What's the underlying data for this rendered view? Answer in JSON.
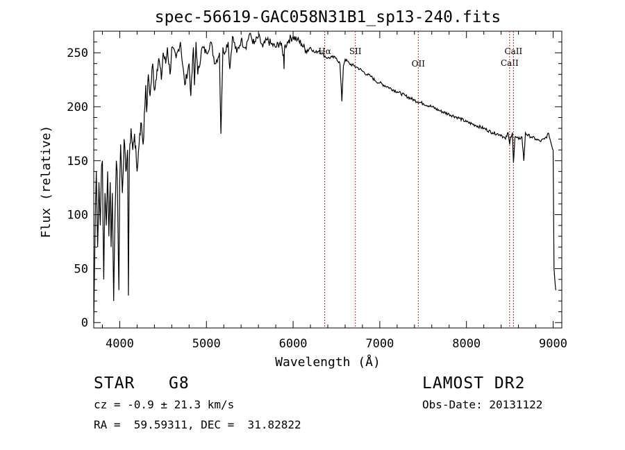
{
  "chart_data": {
    "type": "line",
    "title": "spec-56619-GAC058N31B1_sp13-240.fits",
    "xlabel": "Wavelength (Å)",
    "ylabel": "Flux (relative)",
    "xlim": [
      3700,
      9100
    ],
    "ylim": [
      -5,
      270
    ],
    "xticks": [
      4000,
      5000,
      6000,
      7000,
      8000,
      9000
    ],
    "yticks": [
      0,
      50,
      100,
      150,
      200,
      250
    ],
    "grid": false,
    "series": [
      {
        "name": "spectrum",
        "x": [
          3700,
          3720,
          3730,
          3745,
          3760,
          3775,
          3790,
          3800,
          3815,
          3830,
          3845,
          3860,
          3875,
          3890,
          3900,
          3915,
          3930,
          3945,
          3960,
          3970,
          3990,
          4000,
          4010,
          4030,
          4050,
          4070,
          4090,
          4100,
          4110,
          4130,
          4150,
          4170,
          4200,
          4230,
          4250,
          4270,
          4290,
          4300,
          4310,
          4330,
          4350,
          4380,
          4400,
          4430,
          4450,
          4480,
          4500,
          4530,
          4550,
          4580,
          4600,
          4650,
          4700,
          4750,
          4800,
          4820,
          4850,
          4862,
          4880,
          4900,
          4950,
          5000,
          5050,
          5100,
          5150,
          5167,
          5172,
          5184,
          5190,
          5200,
          5250,
          5270,
          5300,
          5350,
          5400,
          5450,
          5500,
          5550,
          5600,
          5650,
          5700,
          5750,
          5800,
          5850,
          5890,
          5895,
          5900,
          5950,
          6000,
          6050,
          6100,
          6150,
          6200,
          6250,
          6300,
          6350,
          6400,
          6450,
          6500,
          6540,
          6563,
          6580,
          6600,
          6650,
          6700,
          6750,
          6800,
          6850,
          6900,
          6950,
          7000,
          7100,
          7200,
          7300,
          7400,
          7500,
          7600,
          7700,
          7800,
          7900,
          8000,
          8100,
          8200,
          8300,
          8400,
          8450,
          8480,
          8498,
          8510,
          8530,
          8542,
          8560,
          8600,
          8640,
          8662,
          8680,
          8700,
          8750,
          8800,
          8850,
          8900,
          8950,
          8980,
          9000,
          9010,
          9030
        ],
        "values": [
          0,
          110,
          140,
          70,
          130,
          90,
          145,
          150,
          40,
          120,
          90,
          140,
          80,
          130,
          70,
          120,
          20,
          100,
          150,
          140,
          30,
          130,
          165,
          120,
          170,
          140,
          160,
          25,
          150,
          180,
          160,
          175,
          140,
          175,
          185,
          165,
          200,
          220,
          195,
          230,
          210,
          240,
          215,
          235,
          245,
          225,
          250,
          240,
          255,
          230,
          255,
          245,
          260,
          220,
          240,
          210,
          255,
          220,
          260,
          230,
          255,
          250,
          260,
          240,
          250,
          175,
          190,
          230,
          255,
          250,
          260,
          235,
          265,
          250,
          262,
          255,
          268,
          258,
          265,
          255,
          262,
          258,
          255,
          260,
          248,
          235,
          255,
          262,
          265,
          262,
          258,
          252,
          255,
          250,
          252,
          248,
          245,
          246,
          245,
          240,
          205,
          238,
          244,
          240,
          238,
          236,
          233,
          230,
          228,
          224,
          222,
          218,
          214,
          210,
          206,
          203,
          200,
          196,
          193,
          190,
          186,
          183,
          180,
          176,
          174,
          170,
          176,
          165,
          172,
          176,
          148,
          172,
          170,
          172,
          150,
          176,
          174,
          172,
          170,
          168,
          170,
          175,
          165,
          160,
          50,
          30
        ]
      }
    ],
    "lines": [
      {
        "label": "Hα",
        "x": 6365,
        "label_pos": "top"
      },
      {
        "label": "SII",
        "x": 6718,
        "label_pos": "top"
      },
      {
        "label": "OII",
        "x": 7444,
        "label_pos": "middle"
      },
      {
        "label": "CaII",
        "x": 8498,
        "label_pos": "lower"
      },
      {
        "label": "CaII",
        "x": 8542,
        "label_pos": "upper"
      }
    ]
  },
  "footer": {
    "object_class": "STAR",
    "subclass": "G8",
    "survey": "LAMOST DR2",
    "cz": "cz = -0.9 ± 21.3 km/s",
    "obs_date": "Obs-Date: 20131122",
    "radec": "RA =  59.59311, DEC =  31.82822"
  },
  "colors": {
    "axis": "#000000",
    "spectrum": "#000000",
    "lines": "#b22222"
  }
}
